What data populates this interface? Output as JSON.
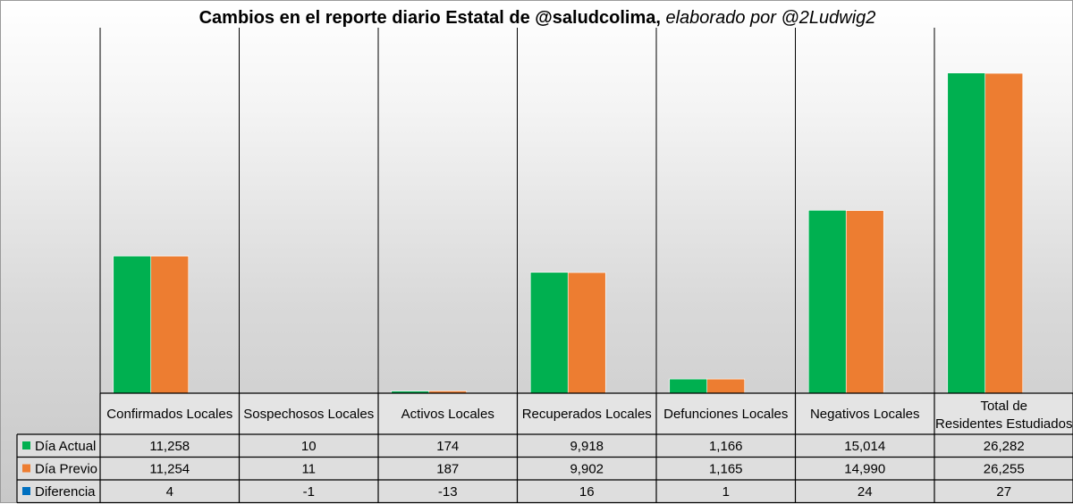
{
  "chart_data": {
    "type": "bar",
    "title": "Cambios en el reporte diario Estatal de @saludcolima,",
    "subtitle": "elaborado por @2Ludwig2",
    "categories": [
      "Confirmados Locales",
      "Sospechosos Locales",
      "Activos Locales",
      "Recuperados Locales",
      "Defunciones Locales",
      "Negativos Locales",
      "Total de Residentes Estudiados"
    ],
    "series": [
      {
        "name": "Día Actual",
        "color": "#00b050",
        "values": [
          11258,
          10,
          174,
          9918,
          1166,
          15014,
          26282
        ],
        "labels": [
          "11,258",
          "10",
          "174",
          "9,918",
          "1,166",
          "15,014",
          "26,282"
        ],
        "plotted": true
      },
      {
        "name": "Día Previo",
        "color": "#ed7d31",
        "values": [
          11254,
          11,
          187,
          9902,
          1165,
          14990,
          26255
        ],
        "labels": [
          "11,254",
          "11",
          "187",
          "9,902",
          "1,165",
          "14,990",
          "26,255"
        ],
        "plotted": true
      },
      {
        "name": "Diferencia",
        "color": "#0070c0",
        "values": [
          4,
          -1,
          -13,
          16,
          1,
          24,
          27
        ],
        "labels": [
          "4",
          "-1",
          "-13",
          "16",
          "1",
          "24",
          "27"
        ],
        "plotted": true
      }
    ],
    "ylim": [
      0,
      30000
    ],
    "grid": "vertical category separators",
    "legend": "data table below plot"
  }
}
